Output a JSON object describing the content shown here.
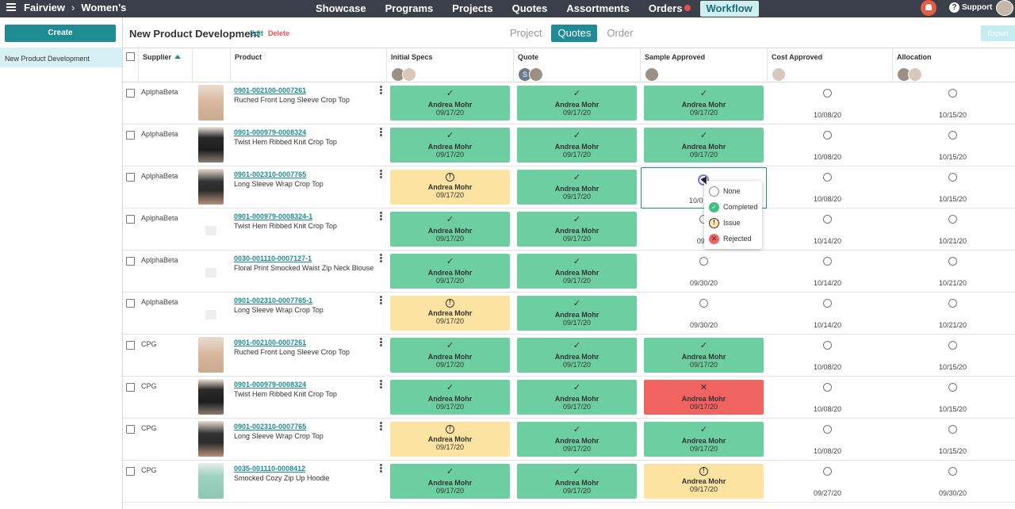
{
  "topbar": {
    "brand": "Fairview",
    "section": "Women's",
    "nav": [
      "Showcase",
      "Programs",
      "Projects",
      "Quotes",
      "Assortments",
      "Orders",
      "Workflow"
    ],
    "support": "Support"
  },
  "sidebar": {
    "create_label": "Create",
    "items": [
      "New Product Development"
    ]
  },
  "header": {
    "title": "New Product Development",
    "edit": "Edit",
    "delete": "Delete",
    "tabs": [
      "Project",
      "Quotes",
      "Order"
    ],
    "active_tab": "Quotes",
    "export": "Export"
  },
  "columns": {
    "supplier": "Supplier",
    "product": "Product",
    "stages": [
      "Initial Specs",
      "Quote",
      "Sample Approved",
      "Cost Approved",
      "Allocation"
    ],
    "quote_avatar_letter": "S"
  },
  "rows": [
    {
      "supplier": "AplphaBeta",
      "sku": "0901-002100-0007261",
      "name": "Ruched Front Long Sleeve Crop Top",
      "thumb": "beige",
      "stages": [
        {
          "s": "done",
          "who": "Andrea Mohr",
          "date": "09/17/20"
        },
        {
          "s": "done",
          "who": "Andrea Mohr",
          "date": "09/17/20"
        },
        {
          "s": "done",
          "who": "Andrea Mohr",
          "date": "09/17/20"
        },
        {
          "s": "pending",
          "date": "10/08/20"
        },
        {
          "s": "pending",
          "date": "10/15/20"
        }
      ]
    },
    {
      "supplier": "AplphaBeta",
      "sku": "0901-000979-0008324",
      "name": "Twist Hem Ribbed Knit Crop Top",
      "thumb": "black",
      "stages": [
        {
          "s": "done",
          "who": "Andrea Mohr",
          "date": "09/17/20"
        },
        {
          "s": "done",
          "who": "Andrea Mohr",
          "date": "09/17/20"
        },
        {
          "s": "done",
          "who": "Andrea Mohr",
          "date": "09/17/20"
        },
        {
          "s": "pending",
          "date": "10/08/20"
        },
        {
          "s": "pending",
          "date": "10/15/20"
        }
      ]
    },
    {
      "supplier": "AplphaBeta",
      "sku": "0901-002310-0007765",
      "name": "Long Sleeve Wrap Crop Top",
      "thumb": "wrap",
      "stages": [
        {
          "s": "issue",
          "who": "Andrea Mohr",
          "date": "09/17/20"
        },
        {
          "s": "done",
          "who": "Andrea Mohr",
          "date": "09/17/20"
        },
        {
          "s": "selected",
          "date": "10/0"
        },
        {
          "s": "pending",
          "date": "10/08/20"
        },
        {
          "s": "pending",
          "date": "10/15/20"
        }
      ]
    },
    {
      "supplier": "AplphaBeta",
      "sku": "0901-000979-0008324-1",
      "name": "Twist Hem Ribbed Knit Crop Top",
      "thumb": "placeholder",
      "stages": [
        {
          "s": "done",
          "who": "Andrea Mohr",
          "date": "09/17/20"
        },
        {
          "s": "done",
          "who": "Andrea Mohr",
          "date": "09/17/20"
        },
        {
          "s": "pending",
          "date": "09/3"
        },
        {
          "s": "pending",
          "date": "10/14/20"
        },
        {
          "s": "pending",
          "date": "10/21/20"
        }
      ]
    },
    {
      "supplier": "AplphaBeta",
      "sku": "0030-001110-0007127-1",
      "name": "Floral Print Smocked Waist Zip Neck Blouse",
      "thumb": "placeholder",
      "stages": [
        {
          "s": "done",
          "who": "Andrea Mohr",
          "date": "09/17/20"
        },
        {
          "s": "done",
          "who": "Andrea Mohr",
          "date": "09/17/20"
        },
        {
          "s": "pending",
          "date": "09/30/20"
        },
        {
          "s": "pending",
          "date": "10/14/20"
        },
        {
          "s": "pending",
          "date": "10/21/20"
        }
      ]
    },
    {
      "supplier": "AplphaBeta",
      "sku": "0901-002310-0007765-1",
      "name": "Long Sleeve Wrap Crop Top",
      "thumb": "placeholder",
      "stages": [
        {
          "s": "issue",
          "who": "Andrea Mohr",
          "date": "09/17/20"
        },
        {
          "s": "done",
          "who": "Andrea Mohr",
          "date": "09/17/20"
        },
        {
          "s": "pending",
          "date": "09/30/20"
        },
        {
          "s": "pending",
          "date": "10/14/20"
        },
        {
          "s": "pending",
          "date": "10/21/20"
        }
      ]
    },
    {
      "supplier": "CPG",
      "sku": "0901-002100-0007261",
      "name": "Ruched Front Long Sleeve Crop Top",
      "thumb": "beige",
      "stages": [
        {
          "s": "done",
          "who": "Andrea Mohr",
          "date": "09/17/20"
        },
        {
          "s": "done",
          "who": "Andrea Mohr",
          "date": "09/17/20"
        },
        {
          "s": "done",
          "who": "Andrea Mohr",
          "date": "09/17/20"
        },
        {
          "s": "pending",
          "date": "10/08/20"
        },
        {
          "s": "pending",
          "date": "10/15/20"
        }
      ]
    },
    {
      "supplier": "CPG",
      "sku": "0901-000979-0008324",
      "name": "Twist Hem Ribbed Knit Crop Top",
      "thumb": "black",
      "stages": [
        {
          "s": "done",
          "who": "Andrea Mohr",
          "date": "09/17/20"
        },
        {
          "s": "done",
          "who": "Andrea Mohr",
          "date": "09/17/20"
        },
        {
          "s": "rej",
          "who": "Andrea Mohr",
          "date": "09/17/20"
        },
        {
          "s": "pending",
          "date": "10/08/20"
        },
        {
          "s": "pending",
          "date": "10/15/20"
        }
      ]
    },
    {
      "supplier": "CPG",
      "sku": "0901-002310-0007765",
      "name": "Long Sleeve Wrap Crop Top",
      "thumb": "wrap",
      "stages": [
        {
          "s": "issue",
          "who": "Andrea Mohr",
          "date": "09/17/20"
        },
        {
          "s": "done",
          "who": "Andrea Mohr",
          "date": "09/17/20"
        },
        {
          "s": "done",
          "who": "Andrea Mohr",
          "date": "09/17/20"
        },
        {
          "s": "pending",
          "date": "10/08/20"
        },
        {
          "s": "pending",
          "date": "10/15/20"
        }
      ]
    },
    {
      "supplier": "CPG",
      "sku": "0035-001110-0008412",
      "name": "Smocked Cozy Zip Up Hoodie",
      "thumb": "green",
      "stages": [
        {
          "s": "done",
          "who": "Andrea Mohr",
          "date": "09/17/20"
        },
        {
          "s": "done",
          "who": "Andrea Mohr",
          "date": "09/17/20"
        },
        {
          "s": "issue",
          "who": "Andrea Mohr",
          "date": "09/17/20"
        },
        {
          "s": "pending",
          "date": "09/27/20"
        },
        {
          "s": "pending",
          "date": "09/30/20"
        }
      ]
    }
  ],
  "dropdown": {
    "options": [
      "None",
      "Completed",
      "Issue",
      "Rejected"
    ]
  },
  "colors": {
    "accent": "#1f8c93",
    "completed": "#6dcfa1",
    "issue": "#fde3a1",
    "rejected": "#ef6360",
    "topbar": "#3b3f4a"
  }
}
